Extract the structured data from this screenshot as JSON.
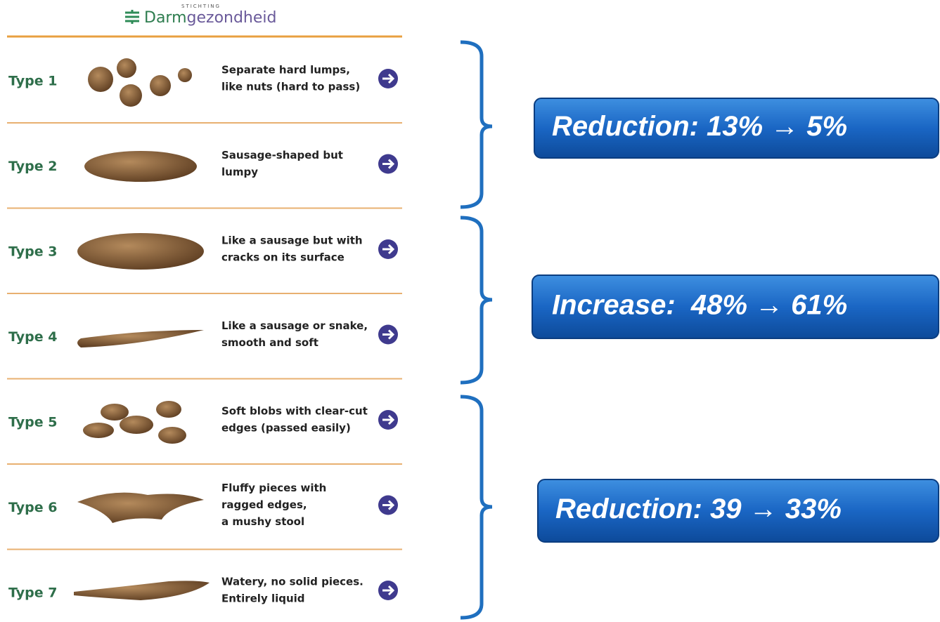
{
  "logo": {
    "overline": "STICHTING",
    "prefix": "Darm",
    "suffix": "gezondheid"
  },
  "rows": [
    {
      "label": "Type 1",
      "lines": [
        "Separate hard lumps,",
        "like nuts (hard to pass)"
      ]
    },
    {
      "label": "Type 2",
      "lines": [
        "Sausage-shaped but",
        "lumpy"
      ]
    },
    {
      "label": "Type 3",
      "lines": [
        "Like a sausage but with",
        "cracks on its surface"
      ]
    },
    {
      "label": "Type 4",
      "lines": [
        "Like a sausage or snake,",
        "smooth and soft"
      ]
    },
    {
      "label": "Type 5",
      "lines": [
        "Soft blobs with clear-cut",
        "edges (passed easily)"
      ]
    },
    {
      "label": "Type 6",
      "lines": [
        "Fluffy pieces with",
        "ragged edges,",
        "a mushy stool"
      ]
    },
    {
      "label": "Type 7",
      "lines": [
        "Watery, no solid pieces.",
        "Entirely liquid"
      ]
    }
  ],
  "groups": [
    {
      "text": "Reduction: 13% → 5%"
    },
    {
      "text": "Increase:  48% → 61%"
    },
    {
      "text": "Reduction: 39 → 33%"
    }
  ]
}
